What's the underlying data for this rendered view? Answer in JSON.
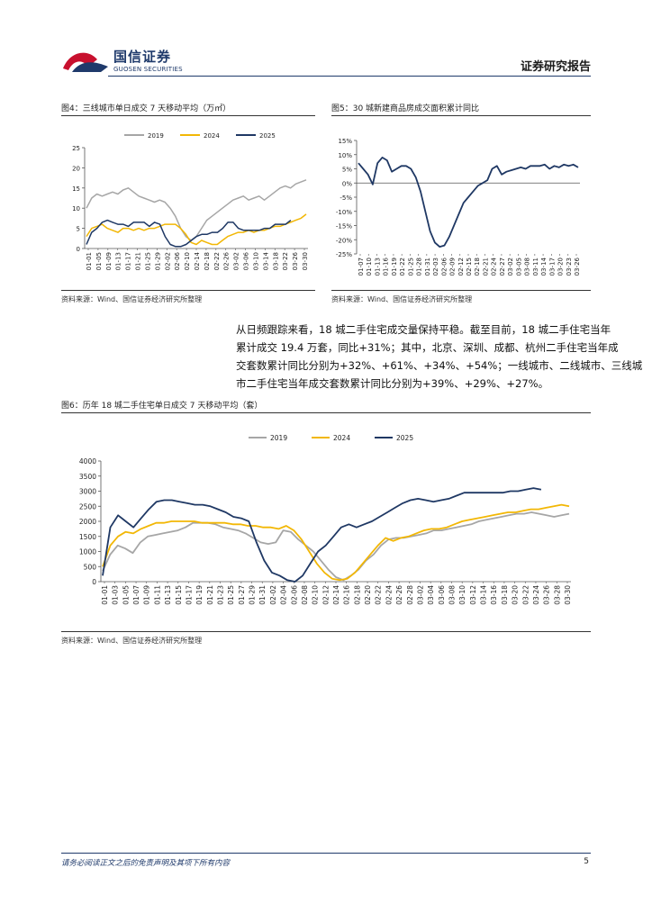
{
  "header": {
    "logo_cn": "国信证券",
    "logo_en": "GUOSEN SECURITIES",
    "report_type": "证券研究报告"
  },
  "colors": {
    "s2019": "#a6a6a6",
    "s2024": "#f2b705",
    "s2025": "#1f3864",
    "brand": "#1f3a6b",
    "logo_red": "#c8102e"
  },
  "fig4": {
    "title": "图4：三线城市单日成交 7 天移动平均（万㎡）",
    "source": "资料来源：Wind、国信证券经济研究所整理",
    "chart_data": {
      "type": "line",
      "ylim": [
        0,
        25
      ],
      "yticks": [
        "0",
        "5",
        "10",
        "15",
        "20",
        "25"
      ],
      "x_ticks": [
        "01-01",
        "01-05",
        "01-09",
        "01-13",
        "01-17",
        "01-21",
        "01-25",
        "01-29",
        "02-02",
        "02-06",
        "02-10",
        "02-14",
        "02-18",
        "02-22",
        "02-26",
        "03-02",
        "03-06",
        "03-10",
        "03-14",
        "03-18",
        "03-22",
        "03-26",
        "03-30"
      ],
      "series": [
        {
          "name": "2019",
          "color": "#a6a6a6",
          "values": [
            10,
            12.5,
            13.5,
            13,
            13.5,
            14,
            13.5,
            14.5,
            15,
            14,
            13,
            12.5,
            12,
            11.5,
            12,
            11.5,
            10,
            8,
            5,
            3,
            2,
            3,
            5,
            7,
            8,
            9,
            10,
            11,
            12,
            12.5,
            13,
            12,
            12.5,
            13,
            12,
            13,
            14,
            15,
            15.5,
            15,
            16,
            16.5,
            17
          ]
        },
        {
          "name": "2024",
          "color": "#f2b705",
          "values": [
            3,
            5,
            5.5,
            6,
            5,
            4.5,
            4,
            5,
            5,
            4.5,
            5,
            4.5,
            5,
            5,
            5.5,
            6,
            6,
            6,
            5,
            3.5,
            1.5,
            1,
            2,
            1.5,
            1,
            1,
            2,
            3,
            3.5,
            4,
            4,
            4.5,
            4,
            4.5,
            4.5,
            5,
            5.5,
            5.5,
            6,
            6.5,
            7,
            7.5,
            8.5
          ]
        },
        {
          "name": "2025",
          "color": "#1f3864",
          "values": [
            1,
            4,
            5,
            6.5,
            7,
            6.5,
            6,
            6,
            5.5,
            6.5,
            6.5,
            6.5,
            5.5,
            6.5,
            6,
            3,
            1,
            0.5,
            0.5,
            1,
            2,
            3,
            3.5,
            3.5,
            4,
            4,
            5,
            6.5,
            6.5,
            5,
            4.5,
            4.5,
            4.5,
            4.5,
            5,
            5,
            6,
            6,
            6,
            7
          ]
        }
      ]
    }
  },
  "fig5": {
    "title": "图5：30 城新建商品房成交面积累计同比",
    "source": "资料来源：Wind、国信证券经济研究所整理",
    "chart_data": {
      "type": "line",
      "ylim": [
        -25,
        15
      ],
      "yticks": [
        "15%",
        "10%",
        "5%",
        "0%",
        "-5%",
        "-10%",
        "-15%",
        "-20%",
        "-25%"
      ],
      "x_ticks": [
        "01-07",
        "01-10",
        "01-13",
        "01-16",
        "01-19",
        "01-22",
        "01-25",
        "01-28",
        "01-31",
        "02-03",
        "02-06",
        "02-09",
        "02-12",
        "02-15",
        "02-18",
        "02-21",
        "02-24",
        "02-27",
        "03-02",
        "03-05",
        "03-08",
        "03-11",
        "03-14",
        "03-17",
        "03-20",
        "03-23",
        "03-26"
      ],
      "series": [
        {
          "name": "",
          "color": "#1f3864",
          "values": [
            7,
            5,
            3,
            -0.5,
            7,
            9,
            8,
            4,
            5,
            6,
            6,
            5,
            2,
            -3,
            -10,
            -17,
            -21,
            -22.5,
            -22,
            -19,
            -15,
            -11,
            -7,
            -5,
            -3,
            -1,
            0,
            1,
            5,
            6,
            3,
            4,
            4.5,
            5,
            5.5,
            5,
            6,
            6,
            6,
            6.5,
            5,
            6,
            5.5,
            6.5,
            6,
            6.5,
            5.5
          ]
        }
      ]
    }
  },
  "body": {
    "paragraph": "从日频跟踪来看，18 城二手住宅成交量保持平稳。截至目前，18 城二手住宅当年累计成交 19.4 万套，同比+31%；其中，北京、深圳、成都、杭州二手住宅当年成交套数累计同比分别为+32%、+61%、+34%、+54%；一线城市、二线城市、三线城市二手住宅当年成交套数累计同比分别为+39%、+29%、+27%。",
    "lines": [
      "从日频跟踪来看，18 城二手住宅成交量保持平稳。截至目前，18 城二手住宅当年",
      "累计成交 19.4 万套，同比+31%；其中，北京、深圳、成都、杭州二手住宅当年成",
      "交套数累计同比分别为+32%、+61%、+34%、+54%；一线城市、二线城市、三线城",
      "市二手住宅当年成交套数累计同比分别为+39%、+29%、+27%。"
    ]
  },
  "fig6": {
    "title": "图6：历年 18 城二手住宅单日成交 7 天移动平均（套）",
    "source": "资料来源：Wind、国信证券经济研究所整理",
    "chart_data": {
      "type": "line",
      "ylim": [
        0,
        4000
      ],
      "yticks": [
        "0",
        "500",
        "1000",
        "1500",
        "2000",
        "2500",
        "3000",
        "3500",
        "4000"
      ],
      "x_ticks": [
        "01-01",
        "01-03",
        "01-05",
        "01-07",
        "01-09",
        "01-11",
        "01-13",
        "01-15",
        "01-17",
        "01-19",
        "01-21",
        "01-23",
        "01-25",
        "01-27",
        "01-29",
        "01-31",
        "02-02",
        "02-04",
        "02-06",
        "02-08",
        "02-10",
        "02-12",
        "02-14",
        "02-16",
        "02-18",
        "02-20",
        "02-22",
        "02-24",
        "02-26",
        "02-28",
        "03-02",
        "03-04",
        "03-06",
        "03-08",
        "03-10",
        "03-12",
        "03-14",
        "03-16",
        "03-18",
        "03-20",
        "03-22",
        "03-24",
        "03-26",
        "03-28",
        "03-30"
      ],
      "series": [
        {
          "name": "2019",
          "color": "#a6a6a6",
          "values": [
            350,
            900,
            1200,
            1100,
            950,
            1300,
            1500,
            1550,
            1600,
            1650,
            1700,
            1800,
            1950,
            1950,
            1950,
            1900,
            1800,
            1750,
            1700,
            1600,
            1450,
            1300,
            1250,
            1300,
            1700,
            1650,
            1400,
            1200,
            1000,
            700,
            400,
            150,
            50,
            200,
            400,
            700,
            900,
            1200,
            1400,
            1450,
            1450,
            1500,
            1550,
            1600,
            1700,
            1700,
            1750,
            1800,
            1850,
            1900,
            2000,
            2050,
            2100,
            2150,
            2200,
            2250,
            2250,
            2300,
            2250,
            2200,
            2150,
            2200,
            2250
          ]
        },
        {
          "name": "2024",
          "color": "#f2b705",
          "values": [
            500,
            1200,
            1500,
            1650,
            1600,
            1750,
            1850,
            1950,
            1950,
            2000,
            2000,
            2000,
            2000,
            1950,
            1950,
            1950,
            1950,
            1900,
            1900,
            1850,
            1850,
            1800,
            1800,
            1750,
            1850,
            1700,
            1400,
            1000,
            600,
            300,
            100,
            50,
            100,
            300,
            600,
            900,
            1200,
            1450,
            1350,
            1450,
            1500,
            1600,
            1700,
            1750,
            1750,
            1800,
            1900,
            2000,
            2050,
            2100,
            2150,
            2200,
            2250,
            2300,
            2300,
            2350,
            2400,
            2400,
            2450,
            2500,
            2550,
            2500
          ]
        },
        {
          "name": "2025",
          "color": "#1f3864",
          "values": [
            200,
            1800,
            2200,
            2000,
            1800,
            2100,
            2400,
            2650,
            2700,
            2700,
            2650,
            2600,
            2550,
            2550,
            2500,
            2400,
            2300,
            2150,
            2100,
            2000,
            1300,
            700,
            300,
            200,
            50,
            0,
            200,
            600,
            1000,
            1200,
            1500,
            1800,
            1900,
            1800,
            1900,
            2000,
            2150,
            2300,
            2450,
            2600,
            2700,
            2750,
            2700,
            2650,
            2700,
            2750,
            2850,
            2950,
            2950,
            2950,
            2950,
            2950,
            2950,
            3000,
            3000,
            3050,
            3100,
            3050
          ]
        }
      ]
    }
  },
  "footer": {
    "note": "请务必阅读正文之后的免责声明及其项下所有内容",
    "page": "5"
  }
}
